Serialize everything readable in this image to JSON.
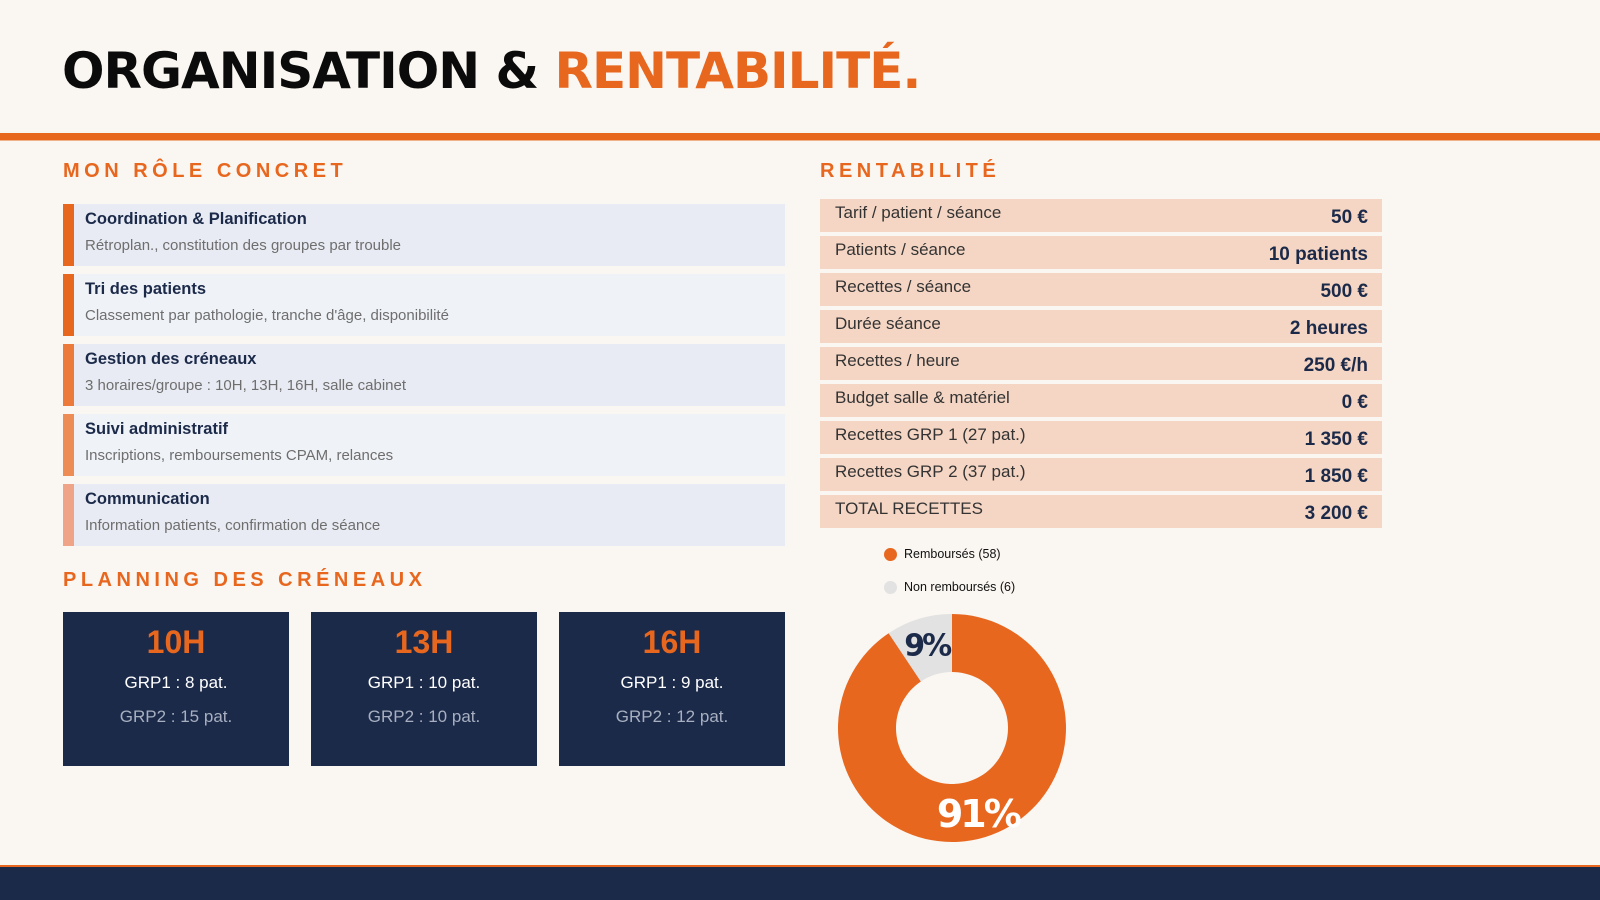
{
  "header": {
    "title_main": "ORGANISATION &",
    "title_accent": "RENTABILITÉ."
  },
  "role_section": {
    "heading": "MON RÔLE CONCRET",
    "items": [
      {
        "title": "Coordination & Planification",
        "desc": "Rétroplan., constitution des groupes par trouble",
        "bar_color": "#e8671f"
      },
      {
        "title": "Tri des patients",
        "desc": "Classement par pathologie, tranche d'âge, disponibilité",
        "bar_color": "#e8671f"
      },
      {
        "title": "Gestion des créneaux",
        "desc": "3 horaires/groupe : 10H, 13H, 16H, salle cabinet",
        "bar_color": "#ec7b3b"
      },
      {
        "title": "Suivi administratif",
        "desc": "Inscriptions, remboursements CPAM, relances",
        "bar_color": "#ee8c55"
      },
      {
        "title": "Communication",
        "desc": "Information patients, confirmation de séance",
        "bar_color": "#f0a487"
      }
    ]
  },
  "planning_section": {
    "heading": "PLANNING DES CRÉNEAUX",
    "slots": [
      {
        "hour": "10H",
        "grp1": "GRP1 : 8 pat.",
        "grp2": "GRP2 : 15 pat."
      },
      {
        "hour": "13H",
        "grp1": "GRP1 : 10 pat.",
        "grp2": "GRP2 : 10 pat."
      },
      {
        "hour": "16H",
        "grp1": "GRP1 : 9 pat.",
        "grp2": "GRP2 : 12 pat."
      }
    ]
  },
  "rentabilite_section": {
    "heading": "RENTABILITÉ",
    "rows": [
      {
        "label": "Tarif / patient / séance",
        "value": "50 €"
      },
      {
        "label": "Patients / séance",
        "value": "10 patients"
      },
      {
        "label": "Recettes / séance",
        "value": "500 €"
      },
      {
        "label": "Durée séance",
        "value": "2 heures"
      },
      {
        "label": "Recettes / heure",
        "value": "250 €/h"
      },
      {
        "label": "Budget salle & matériel",
        "value": "0 €"
      },
      {
        "label": "Recettes GRP 1 (27 pat.)",
        "value": "1 350 €"
      },
      {
        "label": "Recettes GRP 2 (37 pat.)",
        "value": "1 850 €"
      },
      {
        "label": "TOTAL RECETTES",
        "value": "3 200 €"
      }
    ]
  },
  "chart_data": {
    "type": "pie",
    "legend_position": "top-left",
    "categories": [
      "Remboursés (58)",
      "Non remboursés (6)"
    ],
    "values": [
      58,
      6
    ],
    "labels": [
      "91%",
      "9%"
    ],
    "colors": [
      "#e8671f",
      "#e2e2e2"
    ]
  },
  "colors": {
    "accent": "#e8671f",
    "navy": "#1c2a4a",
    "background": "#faf6f2"
  }
}
